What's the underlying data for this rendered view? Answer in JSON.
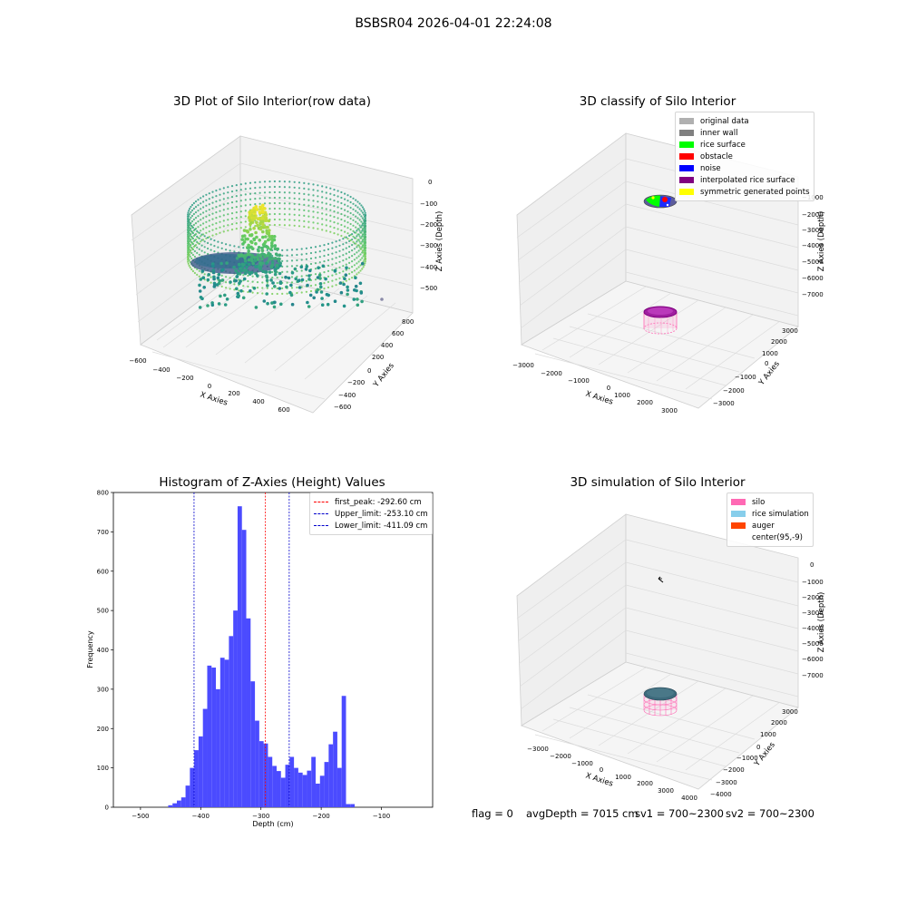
{
  "figure": {
    "suptitle": "BSBSR04 2026-04-01 22:24:08",
    "status": {
      "flag": "flag = 0",
      "avg_depth": "avgDepth = 7015 cm",
      "sv1": "sv1 = 700~2300",
      "sv2": "sv2 = 700~2300"
    }
  },
  "colors": {
    "histogram_bar": "#4b4bff",
    "first_peak_line": "#ff0000",
    "limit_line": "#0000cc",
    "original_data": "#b0b0b0",
    "inner_wall": "#808080",
    "rice_surface": "#00ff00",
    "obstacle": "#ff0000",
    "noise": "#0000ff",
    "interpolated_rice_surface": "#800080",
    "symmetric_generated_points": "#ffff00",
    "silo": "#ff69b4",
    "rice_simulation": "#87ceeb",
    "auger": "#ff4500"
  },
  "chart_data": [
    {
      "type": "scatter",
      "title": "3D Plot of Silo Interior(row data)",
      "xlabel": "X Axies",
      "ylabel": "Y Axies",
      "zlabel": "Z Axies (Depth)",
      "x_ticks": [
        "−600",
        "−400",
        "−200",
        "0",
        "200",
        "400",
        "600"
      ],
      "y_ticks": [
        "−600",
        "−400",
        "−200",
        "0",
        "200",
        "400",
        "600",
        "800"
      ],
      "z_ticks": [
        "0",
        "−100",
        "−200",
        "−300",
        "−400",
        "−500"
      ],
      "xlim": [
        -650,
        700
      ],
      "ylim": [
        -650,
        850
      ],
      "zlim": [
        -560,
        0
      ],
      "colormap": "viridis"
    },
    {
      "type": "scatter",
      "title": "3D classify of Silo Interior",
      "xlabel": "X Axies",
      "ylabel": "Y Axies",
      "zlabel": "Z Axies (Depth)",
      "x_ticks": [
        "−3000",
        "−2000",
        "−1000",
        "0",
        "1000",
        "2000",
        "3000"
      ],
      "y_ticks": [
        "−3000",
        "−2000",
        "−1000",
        "0",
        "1000",
        "2000",
        "3000"
      ],
      "z_ticks": [
        "−1000",
        "−2000",
        "−3000",
        "−4000",
        "−5000",
        "−6000",
        "−7000"
      ],
      "legend_placement": "upper right",
      "legend": [
        {
          "label": "original data",
          "color": "#b0b0b0"
        },
        {
          "label": "inner wall",
          "color": "#808080"
        },
        {
          "label": "rice surface",
          "color": "#00ff00"
        },
        {
          "label": "obstacle",
          "color": "#ff0000"
        },
        {
          "label": "noise",
          "color": "#0000ff"
        },
        {
          "label": "interpolated rice surface",
          "color": "#800080"
        },
        {
          "label": "symmetric generated points",
          "color": "#ffff00"
        }
      ]
    },
    {
      "type": "bar",
      "title": "Histogram of Z-Axies (Height) Values",
      "xlabel": "Depth (cm)",
      "ylabel": "Frequency",
      "xlim": [
        -545,
        -15
      ],
      "ylim": [
        0,
        800
      ],
      "x_ticks": [
        -500,
        -400,
        -300,
        -200,
        -100
      ],
      "x_tick_labels": [
        "−500",
        "−400",
        "−300",
        "−200",
        "−100"
      ],
      "y_ticks": [
        0,
        100,
        200,
        300,
        400,
        500,
        600,
        700,
        800
      ],
      "bins_start": -454,
      "bin_width": 7.2,
      "counts": [
        5,
        10,
        17,
        25,
        55,
        100,
        145,
        180,
        250,
        360,
        355,
        300,
        380,
        375,
        435,
        500,
        765,
        705,
        480,
        320,
        220,
        168,
        162,
        128,
        105,
        92,
        75,
        108,
        128,
        100,
        88,
        82,
        93,
        128,
        60,
        80,
        115,
        160,
        192,
        100,
        283,
        8,
        8
      ],
      "vlines": [
        {
          "x": -292.6,
          "color": "#ff0000"
        },
        {
          "x": -253.1,
          "color": "#0000cc"
        },
        {
          "x": -411.09,
          "color": "#0000cc"
        }
      ],
      "legend_placement": "upper right",
      "legend": [
        {
          "label": "first_peak: -292.60 cm",
          "color": "#ff0000"
        },
        {
          "label": "Upper_limit: -253.10 cm",
          "color": "#0000cc"
        },
        {
          "label": "Lower_limit: -411.09 cm",
          "color": "#0000cc"
        }
      ]
    },
    {
      "type": "scatter",
      "title": "3D simulation of Silo Interior",
      "xlabel": "X Axies",
      "ylabel": "Y Axies",
      "zlabel": "Z Axies (Depth)",
      "x_ticks": [
        "−3000",
        "−2000",
        "−1000",
        "0",
        "1000",
        "2000",
        "3000",
        "4000"
      ],
      "y_ticks": [
        "−4000",
        "−3000",
        "−2000",
        "−1000",
        "0",
        "1000",
        "2000",
        "3000"
      ],
      "z_ticks": [
        "0",
        "−1000",
        "−2000",
        "−3000",
        "−4000",
        "−5000",
        "−6000",
        "−7000"
      ],
      "legend_placement": "upper right",
      "legend": [
        {
          "label": "silo",
          "color": "#ff69b4"
        },
        {
          "label": "rice simulation",
          "color": "#87ceeb"
        },
        {
          "label": "auger",
          "color": "#ff4500"
        },
        {
          "label": "center(95,-9)",
          "color": ""
        }
      ]
    }
  ]
}
